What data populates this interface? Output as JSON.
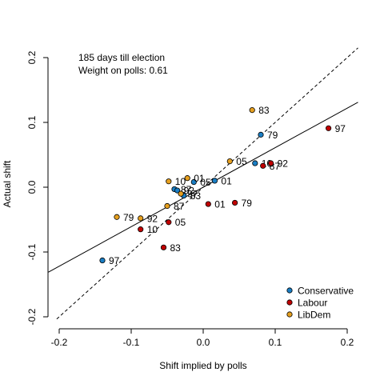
{
  "chart_data": {
    "type": "scatter",
    "xlabel": "Shift implied by polls",
    "ylabel": "Actual shift",
    "xlim": [
      -0.215,
      0.215
    ],
    "ylim": [
      -0.215,
      0.215
    ],
    "x_ticks": [
      -0.2,
      -0.1,
      0.0,
      0.1,
      0.2
    ],
    "x_tick_labels": [
      "-0.2",
      "-0.1",
      "0.0",
      "0.1",
      "0.2"
    ],
    "y_ticks": [
      -0.2,
      -0.1,
      0.0,
      0.1,
      0.2
    ],
    "y_tick_labels": [
      "-0.2",
      "-0.1",
      "0.0",
      "0.1",
      "0.2"
    ],
    "annotations": [
      "185 days till election",
      "Weight on polls: 0.61"
    ],
    "grid": false,
    "box": false,
    "legend_position": "bottom-right",
    "series": [
      {
        "name": "Conservative",
        "color": "#1a7ec4",
        "points": [
          {
            "x": -0.14,
            "y": -0.113,
            "label": "97"
          },
          {
            "x": -0.04,
            "y": -0.003,
            "label": "87"
          },
          {
            "x": -0.036,
            "y": -0.005,
            "label": "92"
          },
          {
            "x": -0.027,
            "y": -0.013,
            "label": "83"
          },
          {
            "x": -0.013,
            "y": 0.008,
            "label": "05"
          },
          {
            "x": 0.016,
            "y": 0.01,
            "label": "01"
          },
          {
            "x": 0.072,
            "y": 0.037,
            "label": "10"
          },
          {
            "x": 0.08,
            "y": 0.081,
            "label": "79"
          }
        ]
      },
      {
        "name": "Labour",
        "color": "#c00000",
        "points": [
          {
            "x": -0.087,
            "y": -0.065,
            "label": "10"
          },
          {
            "x": -0.055,
            "y": -0.093,
            "label": "83"
          },
          {
            "x": -0.048,
            "y": -0.054,
            "label": "05"
          },
          {
            "x": 0.007,
            "y": -0.026,
            "label": "01"
          },
          {
            "x": 0.044,
            "y": -0.024,
            "label": "79"
          },
          {
            "x": 0.083,
            "y": 0.033,
            "label": "87"
          },
          {
            "x": 0.094,
            "y": 0.037,
            "label": "92"
          },
          {
            "x": 0.174,
            "y": 0.091,
            "label": "97"
          }
        ]
      },
      {
        "name": "LibDem",
        "color": "#e6a020",
        "points": [
          {
            "x": -0.12,
            "y": -0.046,
            "label": "79"
          },
          {
            "x": -0.087,
            "y": -0.048,
            "label": "92"
          },
          {
            "x": -0.05,
            "y": -0.029,
            "label": "87"
          },
          {
            "x": -0.031,
            "y": -0.01,
            "label": "97"
          },
          {
            "x": -0.048,
            "y": 0.009,
            "label": "10"
          },
          {
            "x": -0.022,
            "y": 0.014,
            "label": "01"
          },
          {
            "x": 0.037,
            "y": 0.04,
            "label": "05"
          },
          {
            "x": 0.068,
            "y": 0.119,
            "label": "83"
          }
        ]
      }
    ],
    "reference_lines": [
      {
        "kind": "identity",
        "slope": 1,
        "intercept": 0,
        "style": "dashed"
      },
      {
        "kind": "fit",
        "slope": 0.61,
        "intercept": 0.0,
        "style": "solid"
      }
    ]
  }
}
